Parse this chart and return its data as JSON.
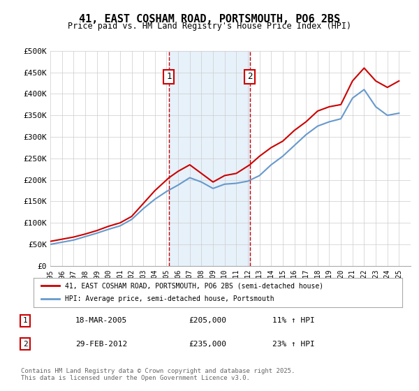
{
  "title": "41, EAST COSHAM ROAD, PORTSMOUTH, PO6 2BS",
  "subtitle": "Price paid vs. HM Land Registry's House Price Index (HPI)",
  "xlabel": "",
  "ylabel": "",
  "ylim": [
    0,
    500000
  ],
  "yticks": [
    0,
    50000,
    100000,
    150000,
    200000,
    250000,
    300000,
    350000,
    400000,
    450000,
    500000
  ],
  "ytick_labels": [
    "£0",
    "£50K",
    "£100K",
    "£150K",
    "£200K",
    "£250K",
    "£300K",
    "£350K",
    "£400K",
    "£450K",
    "£500K"
  ],
  "xmin": 1995,
  "xmax": 2026,
  "vline1_x": 2005.21,
  "vline2_x": 2012.16,
  "vline_color": "#cc0000",
  "shade_color": "#d0e4f7",
  "shade_alpha": 0.5,
  "line1_color": "#cc0000",
  "line2_color": "#6699cc",
  "line1_label": "41, EAST COSHAM ROAD, PORTSMOUTH, PO6 2BS (semi-detached house)",
  "line2_label": "HPI: Average price, semi-detached house, Portsmouth",
  "annotation1_label": "1",
  "annotation1_date": "18-MAR-2005",
  "annotation1_price": "£205,000",
  "annotation1_hpi": "11% ↑ HPI",
  "annotation2_label": "2",
  "annotation2_date": "29-FEB-2012",
  "annotation2_price": "£235,000",
  "annotation2_hpi": "23% ↑ HPI",
  "footer": "Contains HM Land Registry data © Crown copyright and database right 2025.\nThis data is licensed under the Open Government Licence v3.0.",
  "bg_color": "#ffffff",
  "grid_color": "#cccccc",
  "red_hpi_years": [
    1995,
    1996,
    1997,
    1998,
    1999,
    2000,
    2001,
    2002,
    2003,
    2004,
    2005.21,
    2006,
    2007,
    2008,
    2009,
    2010,
    2011,
    2012.16,
    2013,
    2014,
    2015,
    2016,
    2017,
    2018,
    2019,
    2020,
    2021,
    2022,
    2023,
    2024,
    2025
  ],
  "red_values": [
    57000,
    62000,
    67000,
    74000,
    82000,
    92000,
    100000,
    115000,
    145000,
    175000,
    205000,
    220000,
    235000,
    215000,
    195000,
    210000,
    215000,
    235000,
    255000,
    275000,
    290000,
    315000,
    335000,
    360000,
    370000,
    375000,
    430000,
    460000,
    430000,
    415000,
    430000
  ],
  "blue_hpi_years": [
    1995,
    1996,
    1997,
    1998,
    1999,
    2000,
    2001,
    2002,
    2003,
    2004,
    2005,
    2006,
    2007,
    2008,
    2009,
    2010,
    2011,
    2012,
    2013,
    2014,
    2015,
    2016,
    2017,
    2018,
    2019,
    2020,
    2021,
    2022,
    2023,
    2024,
    2025
  ],
  "blue_values": [
    50000,
    55000,
    60000,
    68000,
    76000,
    85000,
    93000,
    108000,
    133000,
    155000,
    173000,
    188000,
    205000,
    195000,
    180000,
    190000,
    192000,
    197000,
    210000,
    235000,
    255000,
    280000,
    305000,
    325000,
    335000,
    342000,
    390000,
    410000,
    370000,
    350000,
    355000
  ]
}
